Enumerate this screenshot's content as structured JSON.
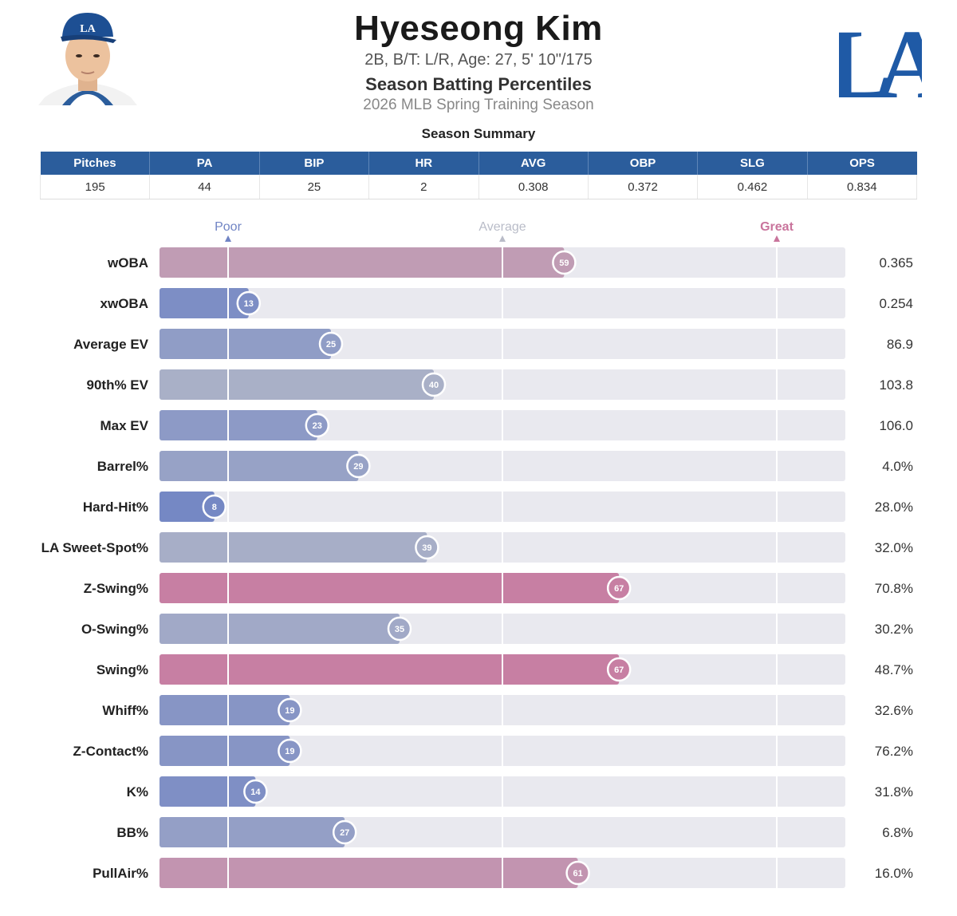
{
  "header": {
    "name": "Hyeseong Kim",
    "bio": "2B, B/T: L/R, Age: 27, 5' 10\"/175",
    "subtitle": "Season Batting Percentiles",
    "season": "2026 MLB Spring Training Season",
    "logo_text": "LA"
  },
  "summary": {
    "title": "Season Summary",
    "headers": [
      "Pitches",
      "PA",
      "BIP",
      "HR",
      "AVG",
      "OBP",
      "SLG",
      "OPS"
    ],
    "values": [
      "195",
      "44",
      "25",
      "2",
      "0.308",
      "0.372",
      "0.462",
      "0.834"
    ]
  },
  "colors": {
    "brand_blue": "#2b5d9c",
    "poor": "#7084c4",
    "average": "#b9bcc8",
    "great": "#c9749c",
    "track": "#e9e9ef"
  },
  "chart_data": {
    "type": "bar",
    "title": "Season Batting Percentiles",
    "orientation": "horizontal",
    "xlim": [
      0,
      100
    ],
    "markers": [
      {
        "label": "Poor",
        "value": 10
      },
      {
        "label": "Average",
        "value": 50
      },
      {
        "label": "Great",
        "value": 90
      }
    ],
    "categories": [
      "wOBA",
      "xwOBA",
      "Average EV",
      "90th% EV",
      "Max EV",
      "Barrel%",
      "Hard-Hit%",
      "LA Sweet-Spot%",
      "Z-Swing%",
      "O-Swing%",
      "Swing%",
      "Whiff%",
      "Z-Contact%",
      "K%",
      "BB%",
      "PullAir%"
    ],
    "percentiles": [
      59,
      13,
      25,
      40,
      23,
      29,
      8,
      39,
      67,
      35,
      67,
      19,
      19,
      14,
      27,
      61
    ],
    "stat_values": [
      "0.365",
      "0.254",
      "86.9",
      "103.8",
      "106.0",
      "4.0%",
      "28.0%",
      "32.0%",
      "70.8%",
      "30.2%",
      "48.7%",
      "32.6%",
      "76.2%",
      "31.8%",
      "6.8%",
      "16.0%"
    ]
  }
}
